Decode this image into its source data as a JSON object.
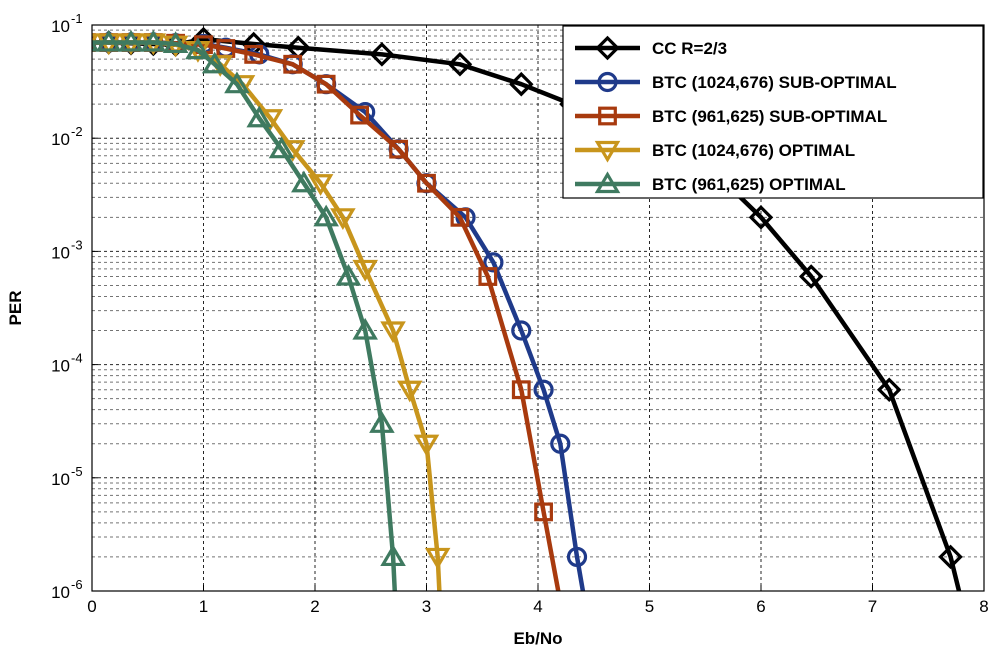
{
  "chart_data": {
    "type": "line",
    "xlabel": "Eb/No",
    "ylabel": "PER",
    "xlim": [
      0,
      8
    ],
    "ylim": [
      1e-06,
      0.1
    ],
    "yscale": "log",
    "grid": true,
    "legend_position": "top-right",
    "x_ticks": [
      "0",
      "1",
      "2",
      "3",
      "4",
      "5",
      "6",
      "7",
      "8"
    ],
    "y_ticks": [
      {
        "base": "10",
        "exp": "-1"
      },
      {
        "base": "10",
        "exp": "-2"
      },
      {
        "base": "10",
        "exp": "-3"
      },
      {
        "base": "10",
        "exp": "-4"
      },
      {
        "base": "10",
        "exp": "-5"
      },
      {
        "base": "10",
        "exp": "-6"
      }
    ],
    "series": [
      {
        "name": "CC R=2/3",
        "color": "#000000",
        "marker": "diamond",
        "x": [
          -0.05,
          0.15,
          0.35,
          0.55,
          0.75,
          1.0,
          1.45,
          1.85,
          2.6,
          3.3,
          3.85,
          4.3,
          5.0,
          5.5,
          6.0,
          6.45,
          7.15,
          7.7,
          7.8
        ],
        "y": [
          0.07,
          0.07,
          0.069,
          0.068,
          0.067,
          0.075,
          0.068,
          0.063,
          0.055,
          0.045,
          0.03,
          0.02,
          0.012,
          0.006,
          0.002,
          0.0006,
          6e-05,
          2e-06,
          8e-07
        ]
      },
      {
        "name": "BTC (1024,676) SUB-OPTIMAL",
        "color": "#1f3a8a",
        "marker": "circle",
        "x": [
          -0.05,
          0.15,
          0.35,
          0.55,
          0.75,
          1.0,
          1.2,
          1.5,
          1.8,
          2.1,
          2.45,
          2.75,
          3.0,
          3.35,
          3.6,
          3.85,
          4.05,
          4.2,
          4.35,
          4.42
        ],
        "y": [
          0.07,
          0.07,
          0.07,
          0.07,
          0.069,
          0.068,
          0.063,
          0.055,
          0.045,
          0.03,
          0.017,
          0.008,
          0.004,
          0.002,
          0.0008,
          0.0002,
          6e-05,
          2e-05,
          2e-06,
          8e-07
        ]
      },
      {
        "name": "BTC (961,625) SUB-OPTIMAL",
        "color": "#a83a0e",
        "marker": "square",
        "x": [
          -0.05,
          0.15,
          0.35,
          0.55,
          0.75,
          1.0,
          1.2,
          1.45,
          1.8,
          2.1,
          2.4,
          2.75,
          3.0,
          3.3,
          3.55,
          3.85,
          4.05,
          4.2
        ],
        "y": [
          0.07,
          0.07,
          0.07,
          0.07,
          0.069,
          0.067,
          0.062,
          0.055,
          0.045,
          0.03,
          0.016,
          0.008,
          0.004,
          0.002,
          0.0006,
          6e-05,
          5e-06,
          8e-07
        ]
      },
      {
        "name": "BTC (1024,676) OPTIMAL",
        "color": "#c8951c",
        "marker": "triangle-down",
        "x": [
          -0.05,
          0.15,
          0.35,
          0.55,
          0.75,
          0.95,
          1.15,
          1.35,
          1.6,
          1.8,
          2.05,
          2.25,
          2.45,
          2.7,
          2.85,
          3.0,
          3.1,
          3.12
        ],
        "y": [
          0.07,
          0.07,
          0.07,
          0.07,
          0.067,
          0.06,
          0.045,
          0.03,
          0.015,
          0.008,
          0.004,
          0.002,
          0.0007,
          0.0002,
          6e-05,
          2e-05,
          2e-06,
          8e-07
        ]
      },
      {
        "name": "BTC (961,625) OPTIMAL",
        "color": "#3f7a60",
        "marker": "triangle-up",
        "x": [
          -0.05,
          0.15,
          0.35,
          0.55,
          0.75,
          0.95,
          1.1,
          1.3,
          1.5,
          1.7,
          1.9,
          2.1,
          2.3,
          2.45,
          2.6,
          2.7,
          2.72
        ],
        "y": [
          0.07,
          0.07,
          0.07,
          0.07,
          0.068,
          0.06,
          0.045,
          0.03,
          0.015,
          0.008,
          0.004,
          0.002,
          0.0006,
          0.0002,
          3e-05,
          2e-06,
          8e-07
        ]
      }
    ]
  }
}
